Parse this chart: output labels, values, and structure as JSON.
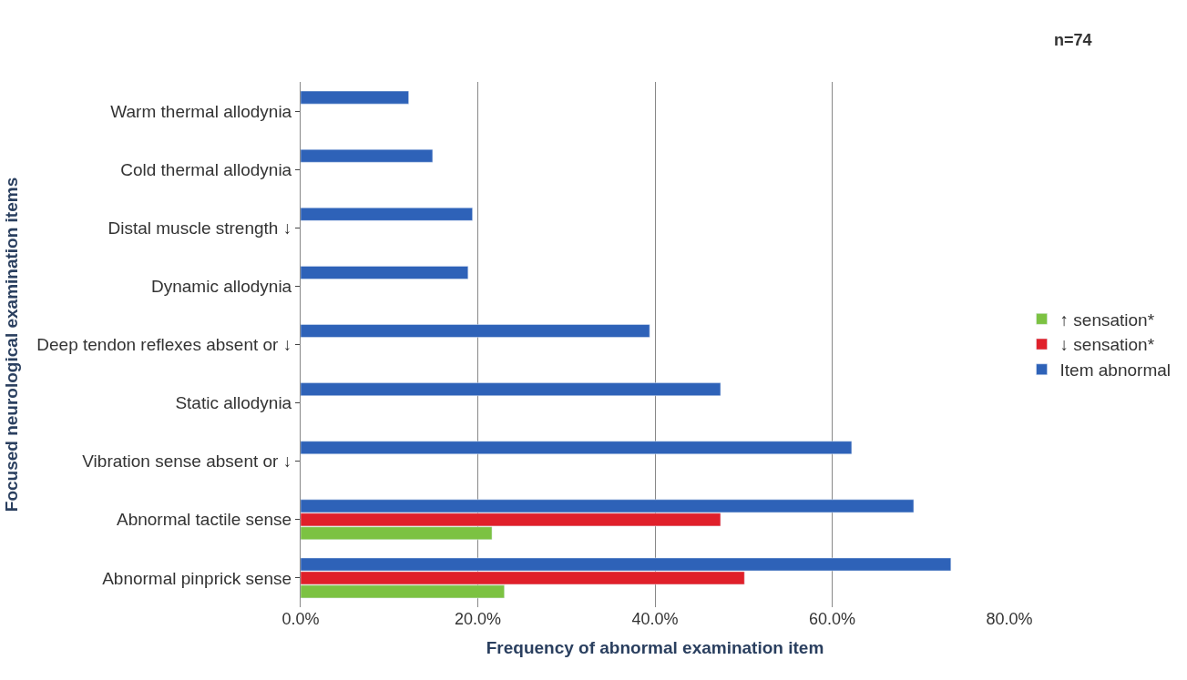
{
  "chart_data": {
    "type": "bar",
    "orientation": "horizontal",
    "xlabel": "Frequency of abnormal examination item",
    "ylabel": "Focused neurological examination items",
    "categories": [
      "Warm thermal allodynia",
      "Cold thermal allodynia",
      "Distal muscle strength ↓",
      "Dynamic allodynia",
      "Deep tendon reflexes absent or ↓",
      "Static allodynia",
      "Vibration sense absent or ↓",
      "Abnormal tactile sense",
      "Abnormal pinprick sense"
    ],
    "series": [
      {
        "name": "Item abnormal",
        "color": "#2e62b8",
        "values": [
          12.2,
          14.9,
          19.4,
          18.9,
          39.4,
          47.4,
          62.2,
          69.2,
          73.4
        ]
      },
      {
        "name": "↓ sensation*",
        "color": "#e0202a",
        "values": [
          null,
          null,
          null,
          null,
          null,
          null,
          null,
          47.4,
          50.1
        ]
      },
      {
        "name": "↑ sensation*",
        "color": "#7cc242",
        "values": [
          null,
          null,
          null,
          null,
          null,
          null,
          null,
          21.6,
          23.0
        ]
      }
    ],
    "xlim": [
      0,
      80
    ],
    "xticks": [
      {
        "value": 0,
        "label": "0.0%"
      },
      {
        "value": 20,
        "label": "20.0%"
      },
      {
        "value": 40,
        "label": "40.0%"
      },
      {
        "value": 60,
        "label": "60.0%"
      },
      {
        "value": 80,
        "label": "80.0%"
      }
    ],
    "grid": "x",
    "legend": "right",
    "annotations": [
      "n=74"
    ]
  }
}
